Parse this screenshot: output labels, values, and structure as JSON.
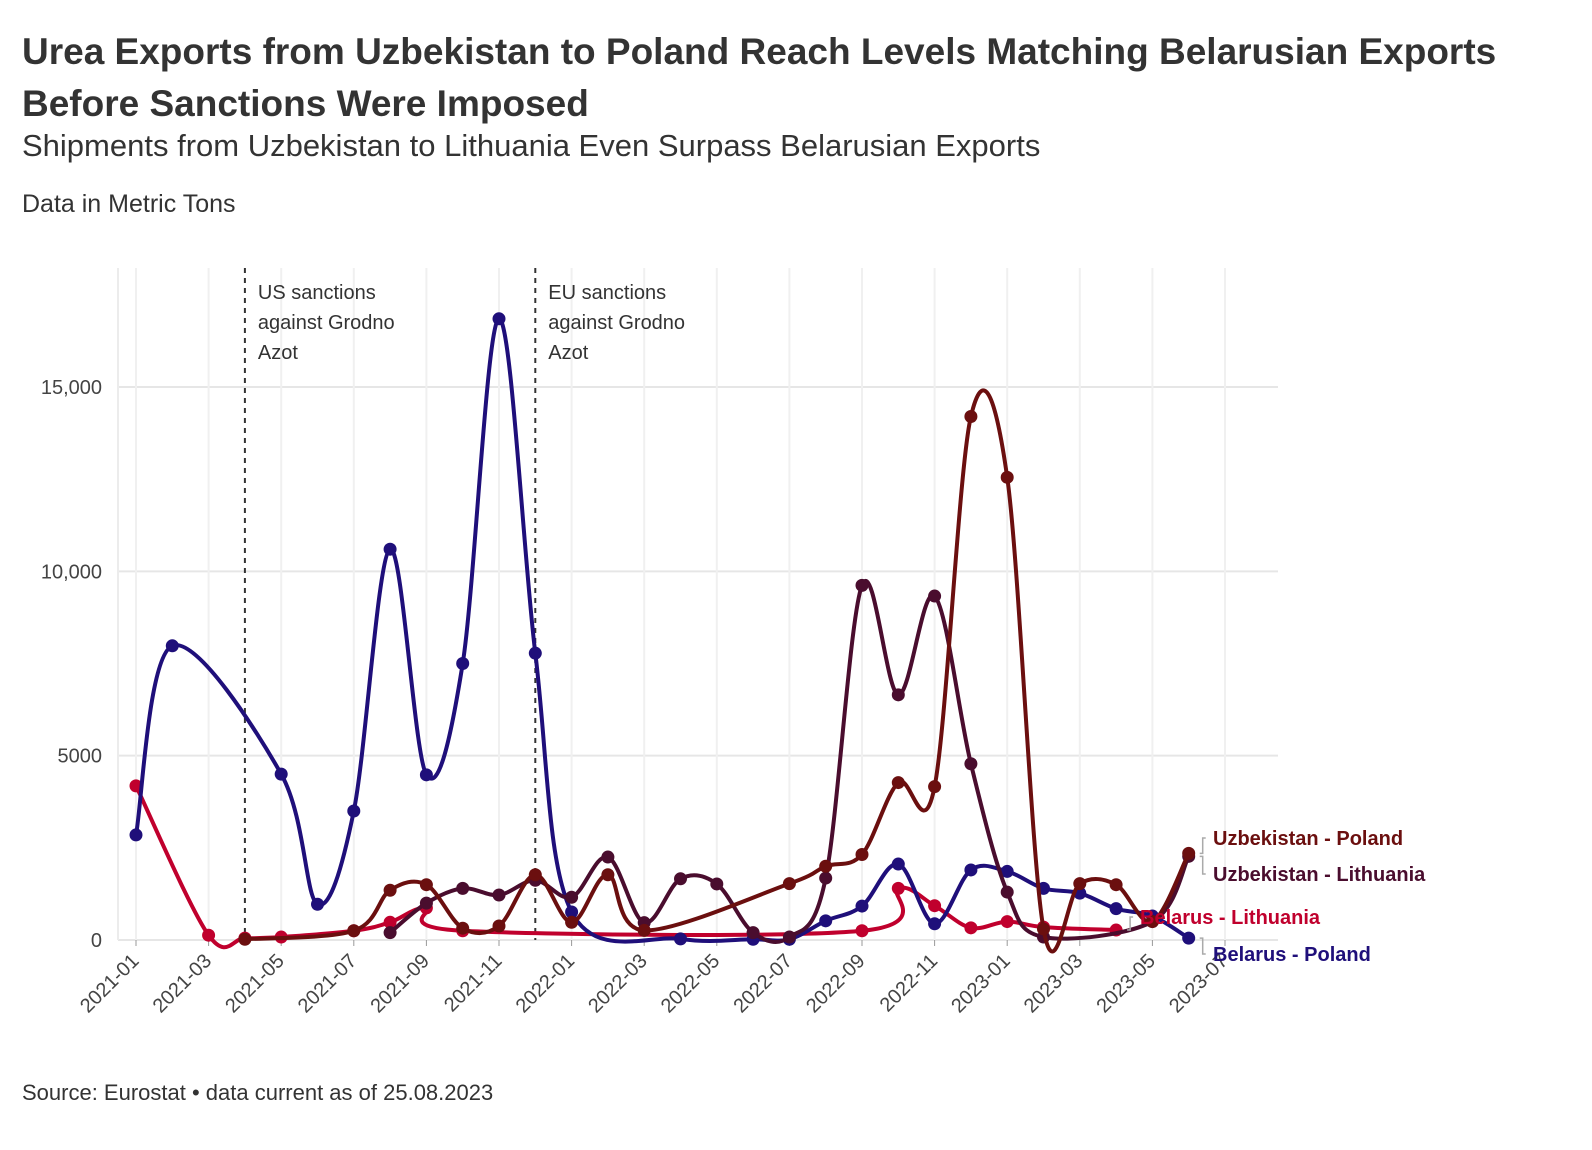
{
  "header": {
    "title": "Urea Exports from Uzbekistan to Poland Reach Levels Matching Belarusian Exports Before Sanctions Were Imposed",
    "subtitle": "Shipments from Uzbekistan to Lithuania Even Surpass Belarusian Exports",
    "unit_note": "Data in Metric Tons"
  },
  "footer": {
    "source": "Source: Eurostat • data current as of 25.08.2023"
  },
  "chart_data": {
    "type": "line",
    "title": "Urea Exports from Uzbekistan to Poland Reach Levels Matching Belarusian Exports Before Sanctions Were Imposed",
    "subtitle": "Shipments from Uzbekistan to Lithuania Even Surpass Belarusian Exports",
    "xlabel": "",
    "ylabel": "",
    "ylim": [
      0,
      17500
    ],
    "y_ticks": [
      0,
      5000,
      10000,
      15000
    ],
    "y_tick_labels": [
      "0",
      "5000",
      "10,000",
      "15,000"
    ],
    "x_ticks": [
      "2021-01",
      "2021-03",
      "2021-05",
      "2021-07",
      "2021-09",
      "2021-11",
      "2022-01",
      "2022-03",
      "2022-05",
      "2022-07",
      "2022-09",
      "2022-11",
      "2023-01",
      "2023-03",
      "2023-05",
      "2023-07"
    ],
    "grid": true,
    "legend": "direct labels at line ends (right)",
    "annotations": [
      {
        "x": "2021-04",
        "lines": [
          "US sanctions",
          "against Grodno",
          "Azot"
        ]
      },
      {
        "x": "2021-12",
        "lines": [
          "EU sanctions",
          "against Grodno",
          "Azot"
        ]
      }
    ],
    "series": [
      {
        "name": "Belarus - Poland",
        "color": "#1f0f7a",
        "points": [
          [
            "2021-01",
            2850
          ],
          [
            "2021-02",
            7980
          ],
          [
            "2021-05",
            4500
          ],
          [
            "2021-06",
            970
          ],
          [
            "2021-07",
            3500
          ],
          [
            "2021-08",
            10600
          ],
          [
            "2021-09",
            4480
          ],
          [
            "2021-10",
            7500
          ],
          [
            "2021-11",
            16850
          ],
          [
            "2021-12",
            7780
          ],
          [
            "2022-01",
            760
          ],
          [
            "2022-04",
            30
          ],
          [
            "2022-06",
            20
          ],
          [
            "2022-07",
            20
          ],
          [
            "2022-08",
            520
          ],
          [
            "2022-09",
            920
          ],
          [
            "2022-10",
            2060
          ],
          [
            "2022-11",
            440
          ],
          [
            "2022-12",
            1900
          ],
          [
            "2023-01",
            1860
          ],
          [
            "2023-02",
            1400
          ],
          [
            "2023-03",
            1270
          ],
          [
            "2023-04",
            850
          ],
          [
            "2023-05",
            650
          ],
          [
            "2023-06",
            50
          ]
        ]
      },
      {
        "name": "Belarus - Lithuania",
        "color": "#c0002d",
        "points": [
          [
            "2021-01",
            4180
          ],
          [
            "2021-03",
            130
          ],
          [
            "2021-04",
            50
          ],
          [
            "2021-05",
            80
          ],
          [
            "2021-07",
            250
          ],
          [
            "2021-08",
            480
          ],
          [
            "2021-09",
            870
          ],
          [
            "2021-10",
            250
          ],
          [
            "2022-09",
            250
          ],
          [
            "2022-10",
            1400
          ],
          [
            "2022-11",
            930
          ],
          [
            "2022-12",
            330
          ],
          [
            "2023-01",
            500
          ],
          [
            "2023-02",
            350
          ],
          [
            "2023-04",
            270
          ]
        ]
      },
      {
        "name": "Uzbekistan - Lithuania",
        "color": "#4a0d2e",
        "points": [
          [
            "2021-08",
            200
          ],
          [
            "2021-09",
            1000
          ],
          [
            "2021-10",
            1400
          ],
          [
            "2021-11",
            1220
          ],
          [
            "2021-12",
            1620
          ],
          [
            "2022-01",
            1160
          ],
          [
            "2022-02",
            2250
          ],
          [
            "2022-03",
            470
          ],
          [
            "2022-04",
            1660
          ],
          [
            "2022-05",
            1520
          ],
          [
            "2022-06",
            200
          ],
          [
            "2022-07",
            80
          ],
          [
            "2022-08",
            1680
          ],
          [
            "2022-09",
            9620
          ],
          [
            "2022-10",
            6650
          ],
          [
            "2022-11",
            9330
          ],
          [
            "2022-12",
            4780
          ],
          [
            "2023-01",
            1300
          ],
          [
            "2023-02",
            80
          ],
          [
            "2023-05",
            500
          ],
          [
            "2023-06",
            2270
          ]
        ]
      },
      {
        "name": "Uzbekistan - Poland",
        "color": "#6b0f0f",
        "points": [
          [
            "2021-04",
            20
          ],
          [
            "2021-07",
            250
          ],
          [
            "2021-08",
            1350
          ],
          [
            "2021-09",
            1500
          ],
          [
            "2021-10",
            320
          ],
          [
            "2021-11",
            380
          ],
          [
            "2021-12",
            1770
          ],
          [
            "2022-01",
            480
          ],
          [
            "2022-02",
            1770
          ],
          [
            "2022-03",
            260
          ],
          [
            "2022-07",
            1530
          ],
          [
            "2022-08",
            2000
          ],
          [
            "2022-09",
            2320
          ],
          [
            "2022-10",
            4270
          ],
          [
            "2022-11",
            4160
          ],
          [
            "2022-12",
            14200
          ],
          [
            "2023-01",
            12550
          ],
          [
            "2023-02",
            300
          ],
          [
            "2023-03",
            1530
          ],
          [
            "2023-04",
            1500
          ],
          [
            "2023-05",
            500
          ],
          [
            "2023-06",
            2350
          ]
        ]
      }
    ]
  }
}
